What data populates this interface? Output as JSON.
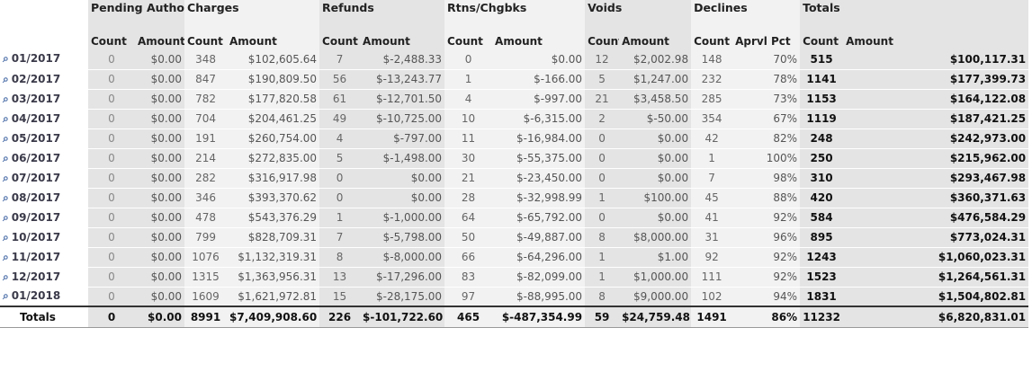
{
  "header_groups": {
    "pending": "Pending Authorizations",
    "charges": "Charges",
    "refunds": "Refunds",
    "rtns": "Rtns/Chgbks",
    "voids": "Voids",
    "declines": "Declines",
    "totals": "Totals"
  },
  "subheaders": {
    "count": "Count",
    "amount": "Amount",
    "aprvl_pct": "Aprvl Pct"
  },
  "rows": [
    {
      "period": "01/2017",
      "pend_count": "0",
      "pend_amount": "$0.00",
      "chg_count": "348",
      "chg_amount": "$102,605.64",
      "ref_count": "7",
      "ref_amount": "$-2,488.33",
      "rtn_count": "0",
      "rtn_amount": "$0.00",
      "void_count": "12",
      "void_amount": "$2,002.98",
      "decl_count": "148",
      "decl_pct": "70%",
      "tot_count": "515",
      "tot_amount": "$100,117.31"
    },
    {
      "period": "02/2017",
      "pend_count": "0",
      "pend_amount": "$0.00",
      "chg_count": "847",
      "chg_amount": "$190,809.50",
      "ref_count": "56",
      "ref_amount": "$-13,243.77",
      "rtn_count": "1",
      "rtn_amount": "$-166.00",
      "void_count": "5",
      "void_amount": "$1,247.00",
      "decl_count": "232",
      "decl_pct": "78%",
      "tot_count": "1141",
      "tot_amount": "$177,399.73"
    },
    {
      "period": "03/2017",
      "pend_count": "0",
      "pend_amount": "$0.00",
      "chg_count": "782",
      "chg_amount": "$177,820.58",
      "ref_count": "61",
      "ref_amount": "$-12,701.50",
      "rtn_count": "4",
      "rtn_amount": "$-997.00",
      "void_count": "21",
      "void_amount": "$3,458.50",
      "decl_count": "285",
      "decl_pct": "73%",
      "tot_count": "1153",
      "tot_amount": "$164,122.08"
    },
    {
      "period": "04/2017",
      "pend_count": "0",
      "pend_amount": "$0.00",
      "chg_count": "704",
      "chg_amount": "$204,461.25",
      "ref_count": "49",
      "ref_amount": "$-10,725.00",
      "rtn_count": "10",
      "rtn_amount": "$-6,315.00",
      "void_count": "2",
      "void_amount": "$-50.00",
      "decl_count": "354",
      "decl_pct": "67%",
      "tot_count": "1119",
      "tot_amount": "$187,421.25"
    },
    {
      "period": "05/2017",
      "pend_count": "0",
      "pend_amount": "$0.00",
      "chg_count": "191",
      "chg_amount": "$260,754.00",
      "ref_count": "4",
      "ref_amount": "$-797.00",
      "rtn_count": "11",
      "rtn_amount": "$-16,984.00",
      "void_count": "0",
      "void_amount": "$0.00",
      "decl_count": "42",
      "decl_pct": "82%",
      "tot_count": "248",
      "tot_amount": "$242,973.00"
    },
    {
      "period": "06/2017",
      "pend_count": "0",
      "pend_amount": "$0.00",
      "chg_count": "214",
      "chg_amount": "$272,835.00",
      "ref_count": "5",
      "ref_amount": "$-1,498.00",
      "rtn_count": "30",
      "rtn_amount": "$-55,375.00",
      "void_count": "0",
      "void_amount": "$0.00",
      "decl_count": "1",
      "decl_pct": "100%",
      "tot_count": "250",
      "tot_amount": "$215,962.00"
    },
    {
      "period": "07/2017",
      "pend_count": "0",
      "pend_amount": "$0.00",
      "chg_count": "282",
      "chg_amount": "$316,917.98",
      "ref_count": "0",
      "ref_amount": "$0.00",
      "rtn_count": "21",
      "rtn_amount": "$-23,450.00",
      "void_count": "0",
      "void_amount": "$0.00",
      "decl_count": "7",
      "decl_pct": "98%",
      "tot_count": "310",
      "tot_amount": "$293,467.98"
    },
    {
      "period": "08/2017",
      "pend_count": "0",
      "pend_amount": "$0.00",
      "chg_count": "346",
      "chg_amount": "$393,370.62",
      "ref_count": "0",
      "ref_amount": "$0.00",
      "rtn_count": "28",
      "rtn_amount": "$-32,998.99",
      "void_count": "1",
      "void_amount": "$100.00",
      "decl_count": "45",
      "decl_pct": "88%",
      "tot_count": "420",
      "tot_amount": "$360,371.63"
    },
    {
      "period": "09/2017",
      "pend_count": "0",
      "pend_amount": "$0.00",
      "chg_count": "478",
      "chg_amount": "$543,376.29",
      "ref_count": "1",
      "ref_amount": "$-1,000.00",
      "rtn_count": "64",
      "rtn_amount": "$-65,792.00",
      "void_count": "0",
      "void_amount": "$0.00",
      "decl_count": "41",
      "decl_pct": "92%",
      "tot_count": "584",
      "tot_amount": "$476,584.29"
    },
    {
      "period": "10/2017",
      "pend_count": "0",
      "pend_amount": "$0.00",
      "chg_count": "799",
      "chg_amount": "$828,709.31",
      "ref_count": "7",
      "ref_amount": "$-5,798.00",
      "rtn_count": "50",
      "rtn_amount": "$-49,887.00",
      "void_count": "8",
      "void_amount": "$8,000.00",
      "decl_count": "31",
      "decl_pct": "96%",
      "tot_count": "895",
      "tot_amount": "$773,024.31"
    },
    {
      "period": "11/2017",
      "pend_count": "0",
      "pend_amount": "$0.00",
      "chg_count": "1076",
      "chg_amount": "$1,132,319.31",
      "ref_count": "8",
      "ref_amount": "$-8,000.00",
      "rtn_count": "66",
      "rtn_amount": "$-64,296.00",
      "void_count": "1",
      "void_amount": "$1.00",
      "decl_count": "92",
      "decl_pct": "92%",
      "tot_count": "1243",
      "tot_amount": "$1,060,023.31"
    },
    {
      "period": "12/2017",
      "pend_count": "0",
      "pend_amount": "$0.00",
      "chg_count": "1315",
      "chg_amount": "$1,363,956.31",
      "ref_count": "13",
      "ref_amount": "$-17,296.00",
      "rtn_count": "83",
      "rtn_amount": "$-82,099.00",
      "void_count": "1",
      "void_amount": "$1,000.00",
      "decl_count": "111",
      "decl_pct": "92%",
      "tot_count": "1523",
      "tot_amount": "$1,264,561.31"
    },
    {
      "period": "01/2018",
      "pend_count": "0",
      "pend_amount": "$0.00",
      "chg_count": "1609",
      "chg_amount": "$1,621,972.81",
      "ref_count": "15",
      "ref_amount": "$-28,175.00",
      "rtn_count": "97",
      "rtn_amount": "$-88,995.00",
      "void_count": "8",
      "void_amount": "$9,000.00",
      "decl_count": "102",
      "decl_pct": "94%",
      "tot_count": "1831",
      "tot_amount": "$1,504,802.81"
    }
  ],
  "totals": {
    "label": "Totals",
    "pend_count": "0",
    "pend_amount": "$0.00",
    "chg_count": "8991",
    "chg_amount": "$7,409,908.60",
    "ref_count": "226",
    "ref_amount": "$-101,722.60",
    "rtn_count": "465",
    "rtn_amount": "$-487,354.99",
    "void_count": "59",
    "void_amount": "$24,759.48",
    "decl_count": "1491",
    "decl_pct": "86%",
    "tot_count": "11232",
    "tot_amount": "$6,820,831.01"
  }
}
